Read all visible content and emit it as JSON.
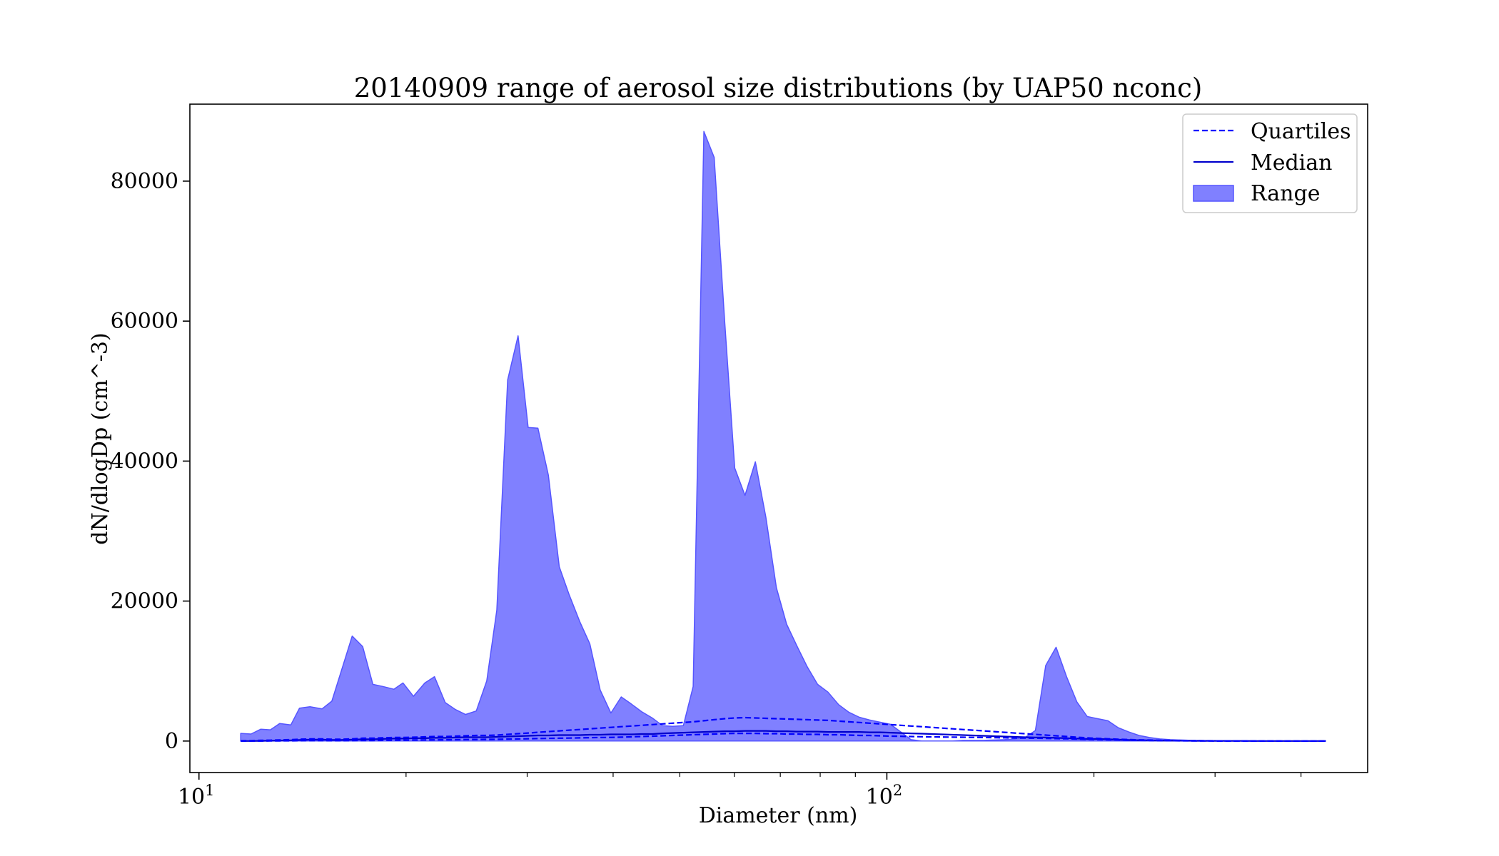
{
  "chart_data": {
    "type": "area",
    "title": "20140909 range of aerosol size distributions (by UAP50 nconc)",
    "xlabel": "Diameter (nm)",
    "ylabel": "dN/dlogDp (cm^-3)",
    "x_scale": "log",
    "xlim": [
      9.7,
      500
    ],
    "ylim": [
      -4500,
      91000
    ],
    "x_ticks": [
      {
        "value": 10,
        "base": "10",
        "exp": "1"
      },
      {
        "value": 100,
        "base": "10",
        "exp": "2"
      }
    ],
    "y_ticks": [
      {
        "value": 0,
        "label": "0"
      },
      {
        "value": 20000,
        "label": "20000"
      },
      {
        "value": 40000,
        "label": "40000"
      },
      {
        "value": 60000,
        "label": "60000"
      },
      {
        "value": 80000,
        "label": "80000"
      }
    ],
    "grid": false,
    "legend_position": "top-right",
    "colors": {
      "range_fill": "#8080ff",
      "range_edge": "#5555ff",
      "median": "#0000cc",
      "quartiles": "#0000ff"
    },
    "legend": [
      {
        "label": "Quartiles",
        "style": "dashed"
      },
      {
        "label": "Median",
        "style": "solid"
      },
      {
        "label": "Range",
        "style": "fill"
      }
    ],
    "x": [
      11.5,
      11.9,
      12.3,
      12.7,
      13.1,
      13.6,
      14.0,
      14.5,
      15.1,
      15.6,
      16.1,
      16.7,
      17.3,
      17.9,
      18.5,
      19.2,
      19.8,
      20.5,
      21.3,
      22.0,
      22.8,
      23.6,
      24.4,
      25.3,
      26.2,
      27.1,
      28.1,
      29.1,
      30.1,
      31.1,
      32.2,
      33.4,
      34.5,
      35.8,
      37.0,
      38.3,
      39.7,
      41.1,
      42.5,
      44.0,
      45.6,
      47.2,
      48.8,
      50.6,
      52.3,
      54.2,
      56.1,
      58.1,
      60.1,
      62.2,
      64.4,
      66.7,
      69.1,
      71.5,
      74.0,
      76.6,
      79.3,
      82.1,
      85.1,
      88.1,
      91.2,
      94.4,
      97.7,
      101.2,
      104.8,
      108.4,
      112.3,
      116.2,
      120.3,
      124.6,
      129.0,
      133.5,
      138.2,
      143.1,
      148.2,
      153.4,
      158.8,
      164.4,
      170.2,
      176.2,
      182.5,
      188.9,
      195.6,
      202.5,
      209.6,
      217.0,
      224.7,
      232.6,
      240.9,
      249.3,
      258.2,
      267.3,
      276.7,
      286.5,
      296.6,
      307.1,
      317.9,
      329.2,
      340.8,
      352.8,
      365.3,
      378.2,
      391.5,
      405.3,
      419.7,
      434.5
    ],
    "series": [
      {
        "name": "Range",
        "kind": "fill_between",
        "upper": [
          1100,
          1000,
          1700,
          1600,
          2500,
          2300,
          4700,
          4900,
          4600,
          5700,
          10000,
          15000,
          13500,
          8100,
          7800,
          7400,
          8300,
          6400,
          8300,
          9200,
          5500,
          4500,
          3800,
          4300,
          8600,
          18700,
          51600,
          57900,
          44800,
          44700,
          38000,
          24900,
          21000,
          17000,
          13900,
          7300,
          4000,
          6300,
          5300,
          4200,
          3300,
          2200,
          2100,
          2200,
          7800,
          87100,
          83400,
          60000,
          39000,
          35100,
          39900,
          32000,
          21900,
          16700,
          13600,
          10600,
          8100,
          7000,
          5200,
          4100,
          3400,
          3000,
          2700,
          2400,
          1300,
          200,
          0,
          0,
          0,
          0,
          100,
          100,
          100,
          150,
          200,
          300,
          500,
          1500,
          10800,
          13400,
          9200,
          5600,
          3500,
          3200,
          2900,
          1900,
          1300,
          800,
          500,
          300,
          200,
          150,
          100,
          80,
          60,
          50,
          40,
          30,
          30,
          20,
          20,
          20,
          20,
          20,
          20,
          20
        ],
        "lower": [
          0,
          0,
          0,
          0,
          0,
          0,
          0,
          0,
          0,
          0,
          0,
          0,
          0,
          0,
          0,
          0,
          0,
          0,
          0,
          0,
          0,
          0,
          0,
          0,
          0,
          0,
          0,
          0,
          0,
          0,
          0,
          0,
          0,
          0,
          0,
          0,
          0,
          0,
          0,
          0,
          0,
          0,
          0,
          0,
          0,
          0,
          0,
          0,
          0,
          0,
          0,
          0,
          0,
          0,
          0,
          0,
          0,
          0,
          0,
          0,
          0,
          0,
          0,
          0,
          0,
          0,
          0,
          0,
          0,
          0,
          0,
          0,
          0,
          0,
          0,
          0,
          0,
          0,
          0,
          0,
          0,
          0,
          0,
          0,
          0,
          0,
          0,
          0,
          0,
          0,
          0,
          0,
          0,
          0,
          0,
          0,
          0,
          0,
          0,
          0,
          0,
          0,
          0,
          0,
          0,
          0
        ]
      },
      {
        "name": "Median",
        "kind": "line",
        "values": [
          0,
          10,
          30,
          50,
          80,
          100,
          150,
          200,
          200,
          150,
          150,
          200,
          250,
          250,
          300,
          350,
          350,
          400,
          400,
          450,
          450,
          500,
          550,
          550,
          550,
          600,
          650,
          700,
          750,
          800,
          800,
          850,
          850,
          850,
          900,
          900,
          950,
          950,
          950,
          1000,
          1000,
          1100,
          1150,
          1200,
          1250,
          1300,
          1350,
          1400,
          1400,
          1450,
          1450,
          1450,
          1400,
          1400,
          1350,
          1350,
          1350,
          1300,
          1300,
          1300,
          1300,
          1250,
          1250,
          1200,
          1150,
          1100,
          1050,
          1000,
          950,
          900,
          850,
          800,
          750,
          700,
          650,
          600,
          550,
          500,
          500,
          450,
          400,
          350,
          300,
          300,
          250,
          200,
          150,
          120,
          100,
          80,
          60,
          50,
          40,
          30,
          30,
          20,
          20,
          20,
          10,
          10,
          10,
          10,
          10,
          10,
          10,
          10
        ]
      },
      {
        "name": "Quartiles",
        "kind": "dashed",
        "values": [
          40,
          60,
          100,
          120,
          160,
          200,
          260,
          300,
          300,
          260,
          260,
          300,
          400,
          400,
          450,
          500,
          500,
          550,
          600,
          650,
          650,
          700,
          750,
          800,
          800,
          850,
          950,
          1050,
          1150,
          1250,
          1350,
          1450,
          1550,
          1650,
          1750,
          1850,
          1950,
          2050,
          2150,
          2250,
          2350,
          2450,
          2550,
          2650,
          2750,
          2900,
          3050,
          3200,
          3300,
          3350,
          3300,
          3250,
          3200,
          3150,
          3100,
          3050,
          3000,
          2950,
          2850,
          2750,
          2650,
          2550,
          2450,
          2350,
          2250,
          2150,
          2050,
          1950,
          1850,
          1750,
          1650,
          1550,
          1450,
          1350,
          1250,
          1150,
          1050,
          950,
          850,
          750,
          650,
          550,
          450,
          380,
          320,
          260,
          210,
          170,
          140,
          110,
          90,
          70,
          55,
          45,
          35,
          30,
          25,
          20,
          18,
          15,
          12,
          10,
          10,
          10,
          10,
          10
        ]
      },
      {
        "name": "Quartiles",
        "kind": "dashed",
        "values": [
          0,
          0,
          10,
          20,
          30,
          40,
          50,
          60,
          60,
          50,
          50,
          60,
          80,
          80,
          100,
          120,
          130,
          150,
          160,
          170,
          180,
          200,
          220,
          230,
          240,
          250,
          280,
          300,
          330,
          360,
          380,
          400,
          420,
          450,
          480,
          500,
          520,
          560,
          600,
          650,
          700,
          750,
          800,
          850,
          900,
          950,
          1000,
          1050,
          1100,
          1100,
          1100,
          1050,
          1050,
          1000,
          1000,
          950,
          950,
          900,
          900,
          850,
          800,
          800,
          750,
          700,
          680,
          650,
          620,
          600,
          580,
          560,
          540,
          520,
          500,
          480,
          460,
          440,
          420,
          400,
          380,
          350,
          320,
          290,
          250,
          220,
          190,
          160,
          130,
          100,
          80,
          60,
          45,
          35,
          25,
          20,
          15,
          10,
          10,
          10,
          5,
          5,
          5,
          5,
          5,
          5,
          5,
          5
        ]
      }
    ]
  }
}
